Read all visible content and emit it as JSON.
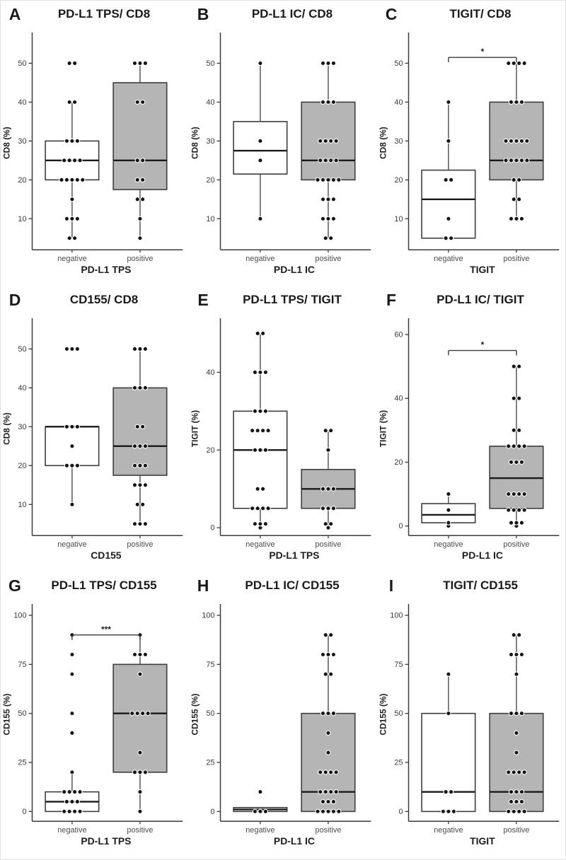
{
  "figure": {
    "colors": {
      "box_negative_fill": "#ffffff",
      "box_positive_fill": "#b5b5b5",
      "box_stroke": "#3d3d3d",
      "median_color": "#1a1a1a",
      "whisker_color": "#4a4a4a",
      "point_fill": "#141414",
      "point_stroke": "#ffffff",
      "axis_color": "#3a3a3a",
      "tick_label_color": "#3a3a3a",
      "category_label_color": "#4d4d4d",
      "axis_title_color": "#1d1d1d"
    }
  },
  "chart_data": [
    {
      "panel": "A",
      "title": "PD-L1 TPS/ CD8",
      "type": "boxplot",
      "xlabel": "PD-L1 TPS",
      "ylabel": "CD8 (%)",
      "yticks": [
        10,
        20,
        30,
        40,
        50
      ],
      "ylim": [
        2,
        57
      ],
      "significance": null,
      "groups": [
        {
          "name": "negative",
          "fill": "white",
          "q1": 20,
          "median": 25,
          "q3": 30,
          "whisker_low": 5,
          "whisker_high": 40,
          "points": [
            50,
            50,
            40,
            40,
            30,
            30,
            30,
            25,
            25,
            25,
            25,
            20,
            20,
            20,
            20,
            20,
            15,
            10,
            10,
            10,
            5,
            5
          ]
        },
        {
          "name": "positive",
          "fill": "gray",
          "q1": 17.5,
          "median": 25,
          "q3": 45,
          "whisker_low": 5,
          "whisker_high": 50,
          "points": [
            50,
            50,
            50,
            40,
            40,
            25,
            25,
            20,
            20,
            15,
            15,
            10,
            5
          ]
        }
      ]
    },
    {
      "panel": "B",
      "title": "PD-L1 IC/ CD8",
      "type": "boxplot",
      "xlabel": "PD-L1 IC",
      "ylabel": "CD8 (%)",
      "yticks": [
        10,
        20,
        30,
        40,
        50
      ],
      "ylim": [
        2,
        57
      ],
      "significance": null,
      "groups": [
        {
          "name": "negative",
          "fill": "white",
          "q1": 21.5,
          "median": 27.5,
          "q3": 35,
          "whisker_low": 10,
          "whisker_high": 50,
          "points": [
            50,
            30,
            25,
            10
          ]
        },
        {
          "name": "positive",
          "fill": "gray",
          "q1": 20,
          "median": 25,
          "q3": 40,
          "whisker_low": 5,
          "whisker_high": 50,
          "points": [
            50,
            50,
            50,
            40,
            40,
            40,
            30,
            30,
            30,
            30,
            25,
            25,
            25,
            25,
            20,
            20,
            20,
            20,
            20,
            15,
            15,
            15,
            10,
            10,
            10,
            5,
            5
          ]
        }
      ]
    },
    {
      "panel": "C",
      "title": "TIGIT/ CD8",
      "type": "boxplot",
      "xlabel": "TIGIT",
      "ylabel": "CD8 (%)",
      "yticks": [
        10,
        20,
        30,
        40,
        50
      ],
      "ylim": [
        2,
        57
      ],
      "significance": {
        "label": "*",
        "y": 51.5
      },
      "groups": [
        {
          "name": "negative",
          "fill": "white",
          "q1": 5,
          "median": 15,
          "q3": 22.5,
          "whisker_low": 5,
          "whisker_high": 40,
          "points": [
            40,
            30,
            20,
            20,
            10,
            5,
            5
          ]
        },
        {
          "name": "positive",
          "fill": "gray",
          "q1": 20,
          "median": 25,
          "q3": 40,
          "whisker_low": 10,
          "whisker_high": 50,
          "points": [
            50,
            50,
            50,
            50,
            40,
            40,
            40,
            30,
            30,
            30,
            30,
            30,
            25,
            25,
            25,
            25,
            25,
            20,
            20,
            15,
            15,
            10,
            10,
            10
          ]
        }
      ]
    },
    {
      "panel": "D",
      "title": "CD155/ CD8",
      "type": "boxplot",
      "xlabel": "CD155",
      "ylabel": "CD8 (%)",
      "yticks": [
        10,
        20,
        30,
        40,
        50
      ],
      "ylim": [
        2,
        57
      ],
      "significance": null,
      "groups": [
        {
          "name": "negative",
          "fill": "white",
          "q1": 20,
          "median": 30,
          "q3": 30,
          "whisker_low": 10,
          "whisker_high": 30,
          "points": [
            50,
            50,
            50,
            30,
            30,
            30,
            25,
            20,
            20,
            20,
            10
          ]
        },
        {
          "name": "positive",
          "fill": "gray",
          "q1": 17.5,
          "median": 25,
          "q3": 40,
          "whisker_low": 5,
          "whisker_high": 50,
          "points": [
            50,
            50,
            50,
            40,
            40,
            40,
            30,
            30,
            25,
            25,
            25,
            20,
            20,
            20,
            15,
            15,
            15,
            10,
            10,
            5,
            5,
            5
          ]
        }
      ]
    },
    {
      "panel": "E",
      "title": "PD-L1 TPS/ TIGIT",
      "type": "boxplot",
      "xlabel": "PD-L1 TPS",
      "ylabel": "TIGIT (%)",
      "yticks": [
        0,
        20,
        40
      ],
      "ylim": [
        -2,
        53
      ],
      "significance": null,
      "groups": [
        {
          "name": "negative",
          "fill": "white",
          "q1": 5,
          "median": 20,
          "q3": 30,
          "whisker_low": 0,
          "whisker_high": 50,
          "points": [
            50,
            50,
            40,
            40,
            40,
            30,
            30,
            30,
            25,
            25,
            25,
            25,
            20,
            20,
            20,
            10,
            10,
            5,
            5,
            5,
            5,
            1,
            1,
            1,
            0
          ]
        },
        {
          "name": "positive",
          "fill": "gray",
          "q1": 5,
          "median": 10,
          "q3": 15,
          "whisker_low": 0,
          "whisker_high": 25,
          "points": [
            25,
            25,
            20,
            10,
            10,
            10,
            5,
            5,
            5,
            1,
            1,
            0
          ]
        }
      ]
    },
    {
      "panel": "F",
      "title": "PD-L1 IC/ TIGIT",
      "type": "boxplot",
      "xlabel": "PD-L1 IC",
      "ylabel": "TIGIT (%)",
      "yticks": [
        0,
        20,
        40,
        60
      ],
      "ylim": [
        -3,
        64
      ],
      "significance": {
        "label": "*",
        "y": 55
      },
      "groups": [
        {
          "name": "negative",
          "fill": "white",
          "q1": 1,
          "median": 3.5,
          "q3": 7,
          "whisker_low": 0,
          "whisker_high": 10,
          "points": [
            10,
            5,
            1,
            0
          ]
        },
        {
          "name": "positive",
          "fill": "gray",
          "q1": 5.5,
          "median": 15,
          "q3": 25,
          "whisker_low": 0.5,
          "whisker_high": 50,
          "points": [
            50,
            50,
            40,
            40,
            30,
            30,
            25,
            25,
            25,
            25,
            20,
            20,
            20,
            10,
            10,
            10,
            10,
            5,
            5,
            5,
            5,
            1,
            1,
            1,
            0
          ]
        }
      ]
    },
    {
      "panel": "G",
      "title": "PD-L1 TPS/ CD155",
      "type": "boxplot",
      "xlabel": "PD-L1 TPS",
      "ylabel": "CD155 (%)",
      "yticks": [
        0,
        25,
        50,
        75,
        100
      ],
      "ylim": [
        -5,
        104
      ],
      "significance": {
        "label": "***",
        "y": 90
      },
      "groups": [
        {
          "name": "negative",
          "fill": "white",
          "q1": 0,
          "median": 5,
          "q3": 10,
          "whisker_low": 0,
          "whisker_high": 20,
          "points": [
            90,
            80,
            70,
            50,
            40,
            20,
            10,
            10,
            10,
            10,
            5,
            5,
            5,
            0,
            0,
            0,
            0
          ]
        },
        {
          "name": "positive",
          "fill": "gray",
          "q1": 20,
          "median": 50,
          "q3": 75,
          "whisker_low": 0,
          "whisker_high": 90,
          "points": [
            90,
            80,
            80,
            80,
            70,
            50,
            50,
            50,
            50,
            30,
            20,
            20,
            20,
            10,
            0
          ]
        }
      ]
    },
    {
      "panel": "H",
      "title": "PD-L1 IC/ CD155",
      "type": "boxplot",
      "xlabel": "PD-L1 IC",
      "ylabel": "CD155 (%)",
      "yticks": [
        0,
        25,
        50,
        75,
        100
      ],
      "ylim": [
        -5,
        104
      ],
      "significance": null,
      "groups": [
        {
          "name": "negative",
          "fill": "white",
          "q1": 0,
          "median": 1,
          "q3": 2,
          "whisker_low": 0,
          "whisker_high": 2,
          "points": [
            10,
            0,
            0,
            0
          ]
        },
        {
          "name": "positive",
          "fill": "gray",
          "q1": 0,
          "median": 10,
          "q3": 50,
          "whisker_low": 0,
          "whisker_high": 90,
          "points": [
            90,
            90,
            80,
            80,
            80,
            70,
            70,
            50,
            50,
            50,
            40,
            30,
            20,
            20,
            20,
            20,
            10,
            10,
            10,
            10,
            5,
            5,
            5,
            0,
            0,
            0,
            0,
            0
          ]
        }
      ]
    },
    {
      "panel": "I",
      "title": "TIGIT/ CD155",
      "type": "boxplot",
      "xlabel": "TIGIT",
      "ylabel": "CD155 (%)",
      "yticks": [
        0,
        25,
        50,
        75,
        100
      ],
      "ylim": [
        -5,
        104
      ],
      "significance": null,
      "groups": [
        {
          "name": "negative",
          "fill": "white",
          "q1": 0,
          "median": 10,
          "q3": 50,
          "whisker_low": 0,
          "whisker_high": 70,
          "points": [
            70,
            50,
            10,
            10,
            0,
            0,
            0
          ]
        },
        {
          "name": "positive",
          "fill": "gray",
          "q1": 0,
          "median": 10,
          "q3": 50,
          "whisker_low": 0,
          "whisker_high": 90,
          "points": [
            90,
            90,
            80,
            80,
            80,
            70,
            50,
            50,
            50,
            40,
            30,
            20,
            20,
            20,
            20,
            10,
            10,
            10,
            5,
            5,
            5,
            0,
            0,
            0,
            0
          ]
        }
      ]
    }
  ]
}
